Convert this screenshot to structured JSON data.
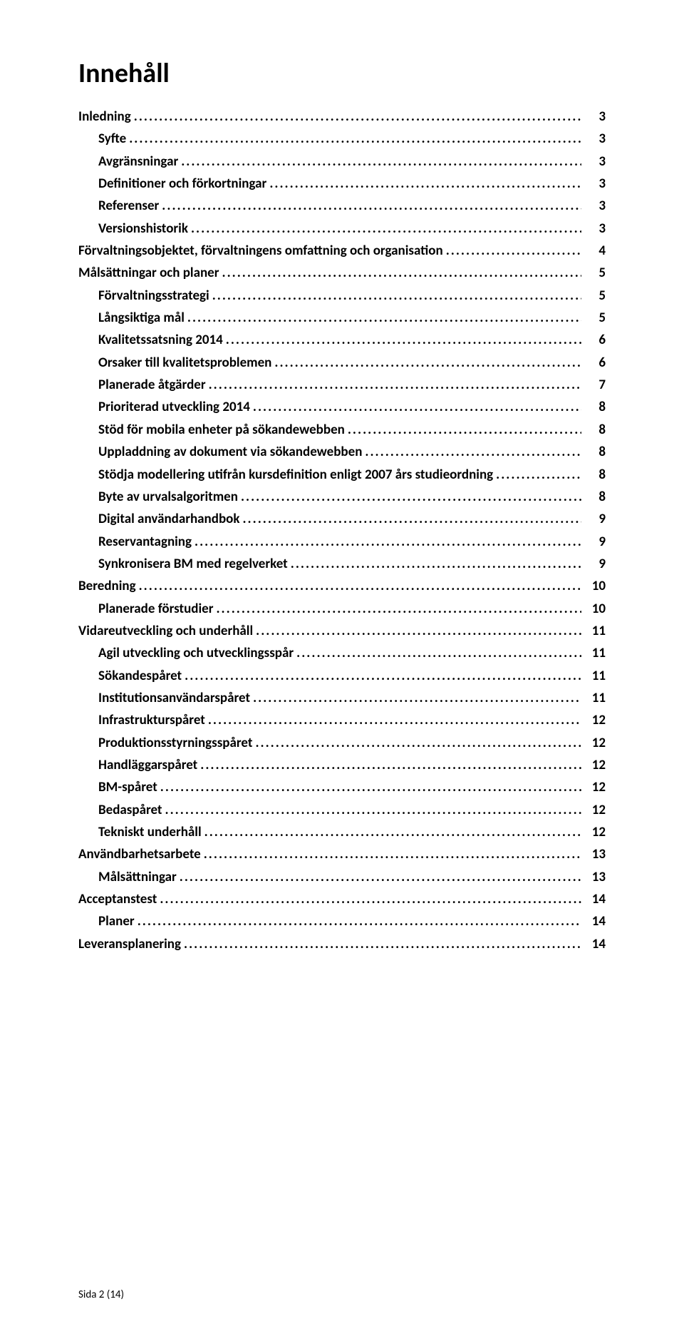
{
  "title": "Innehåll",
  "footer": "Sida 2 (14)",
  "toc": [
    {
      "label": "Inledning",
      "page": "3",
      "level": 1
    },
    {
      "label": "Syfte",
      "page": "3",
      "level": 2
    },
    {
      "label": "Avgränsningar",
      "page": "3",
      "level": 2
    },
    {
      "label": "Definitioner och förkortningar",
      "page": "3",
      "level": 2
    },
    {
      "label": "Referenser",
      "page": "3",
      "level": 2
    },
    {
      "label": "Versionshistorik",
      "page": "3",
      "level": 2
    },
    {
      "label": "Förvaltningsobjektet, förvaltningens omfattning och organisation",
      "page": "4",
      "level": 1
    },
    {
      "label": "Målsättningar och planer",
      "page": "5",
      "level": 1
    },
    {
      "label": "Förvaltningsstrategi",
      "page": "5",
      "level": 2
    },
    {
      "label": "Långsiktiga mål",
      "page": "5",
      "level": 2
    },
    {
      "label": "Kvalitetssatsning 2014",
      "page": "6",
      "level": 2
    },
    {
      "label": "Orsaker till kvalitetsproblemen",
      "page": "6",
      "level": 2
    },
    {
      "label": "Planerade åtgärder",
      "page": "7",
      "level": 2
    },
    {
      "label": "Prioriterad utveckling 2014",
      "page": "8",
      "level": 2
    },
    {
      "label": "Stöd för mobila enheter på sökandewebben",
      "page": "8",
      "level": 2
    },
    {
      "label": "Uppladdning av dokument via sökandewebben",
      "page": "8",
      "level": 2
    },
    {
      "label": "Stödja modellering utifrån kursdefinition enligt 2007 års studieordning",
      "page": "8",
      "level": 2
    },
    {
      "label": "Byte av urvalsalgoritmen",
      "page": "8",
      "level": 2
    },
    {
      "label": "Digital användarhandbok",
      "page": "9",
      "level": 2
    },
    {
      "label": "Reservantagning",
      "page": "9",
      "level": 2
    },
    {
      "label": "Synkronisera BM med regelverket",
      "page": "9",
      "level": 2
    },
    {
      "label": "Beredning",
      "page": "10",
      "level": 1
    },
    {
      "label": "Planerade förstudier",
      "page": "10",
      "level": 2
    },
    {
      "label": "Vidareutveckling och underhåll",
      "page": "11",
      "level": 1
    },
    {
      "label": "Agil utveckling och utvecklingsspår",
      "page": "11",
      "level": 2
    },
    {
      "label": "Sökandespåret",
      "page": "11",
      "level": 2
    },
    {
      "label": "Institutionsanvändarspåret",
      "page": "11",
      "level": 2
    },
    {
      "label": "Infrastrukturspåret",
      "page": "12",
      "level": 2
    },
    {
      "label": "Produktionsstyrningsspåret",
      "page": "12",
      "level": 2
    },
    {
      "label": "Handläggarspåret",
      "page": "12",
      "level": 2
    },
    {
      "label": "BM-spåret",
      "page": "12",
      "level": 2
    },
    {
      "label": "Bedaspåret",
      "page": "12",
      "level": 2
    },
    {
      "label": "Tekniskt underhåll",
      "page": "12",
      "level": 2
    },
    {
      "label": "Användbarhetsarbete",
      "page": "13",
      "level": 1
    },
    {
      "label": "Målsättningar",
      "page": "13",
      "level": 2
    },
    {
      "label": "Acceptanstest",
      "page": "14",
      "level": 1
    },
    {
      "label": "Planer",
      "page": "14",
      "level": 2
    },
    {
      "label": "Leveransplanering",
      "page": "14",
      "level": 1
    }
  ]
}
